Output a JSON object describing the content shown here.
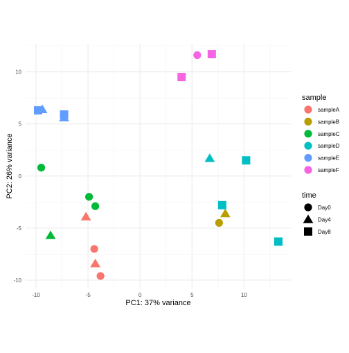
{
  "chart_data": {
    "type": "scatter",
    "xlabel": "PC1: 37% variance",
    "ylabel": "PC2: 26% variance",
    "xlim": [
      -11,
      14.5
    ],
    "ylim": [
      -10.8,
      12.7
    ],
    "x_ticks": [
      -10,
      -5,
      0,
      5,
      10
    ],
    "y_ticks": [
      -10,
      -5,
      0,
      5,
      10
    ],
    "x_tick_labels": [
      "-10",
      "-5",
      "0",
      "5",
      "10"
    ],
    "y_tick_labels": [
      "-10",
      "-5",
      "0",
      "5",
      "10"
    ],
    "grid": true,
    "legend_placement": "right",
    "legends": {
      "colour": {
        "title": "sample",
        "entries": [
          {
            "label": "sampleA",
            "color": "#F8766D"
          },
          {
            "label": "sampleB",
            "color": "#B79F00"
          },
          {
            "label": "sampleC",
            "color": "#00BA38"
          },
          {
            "label": "sampleD",
            "color": "#00BFC4"
          },
          {
            "label": "sampleE",
            "color": "#619CFF"
          },
          {
            "label": "sampleF",
            "color": "#F564E3"
          }
        ]
      },
      "shape": {
        "title": "time",
        "entries": [
          {
            "label": "Day0",
            "shape": "circle"
          },
          {
            "label": "Day4",
            "shape": "triangle"
          },
          {
            "label": "Day8",
            "shape": "square"
          }
        ]
      }
    },
    "points": [
      {
        "sample": "sampleA",
        "time": "Day0",
        "x": -4.4,
        "y": -7.0
      },
      {
        "sample": "sampleA",
        "time": "Day0",
        "x": -3.8,
        "y": -9.6
      },
      {
        "sample": "sampleA",
        "time": "Day4",
        "x": -5.2,
        "y": -3.9
      },
      {
        "sample": "sampleA",
        "time": "Day4",
        "x": -4.3,
        "y": -8.4
      },
      {
        "sample": "sampleB",
        "time": "Day0",
        "x": 7.6,
        "y": -4.5
      },
      {
        "sample": "sampleB",
        "time": "Day4",
        "x": 8.2,
        "y": -3.6
      },
      {
        "sample": "sampleC",
        "time": "Day0",
        "x": -9.5,
        "y": 0.8
      },
      {
        "sample": "sampleC",
        "time": "Day0",
        "x": -4.9,
        "y": -2.0
      },
      {
        "sample": "sampleC",
        "time": "Day0",
        "x": -4.3,
        "y": -2.9
      },
      {
        "sample": "sampleC",
        "time": "Day4",
        "x": -8.6,
        "y": -5.7
      },
      {
        "sample": "sampleD",
        "time": "Day4",
        "x": 6.7,
        "y": 1.7
      },
      {
        "sample": "sampleD",
        "time": "Day8",
        "x": 10.2,
        "y": 1.5
      },
      {
        "sample": "sampleD",
        "time": "Day8",
        "x": 7.9,
        "y": -2.8
      },
      {
        "sample": "sampleD",
        "time": "Day8",
        "x": 13.3,
        "y": -6.3
      },
      {
        "sample": "sampleE",
        "time": "Day4",
        "x": -9.4,
        "y": 6.4
      },
      {
        "sample": "sampleE",
        "time": "Day4",
        "x": -7.3,
        "y": 5.6
      },
      {
        "sample": "sampleE",
        "time": "Day8",
        "x": -9.8,
        "y": 6.3
      },
      {
        "sample": "sampleE",
        "time": "Day8",
        "x": -7.3,
        "y": 5.9
      },
      {
        "sample": "sampleF",
        "time": "Day0",
        "x": 5.5,
        "y": 11.6
      },
      {
        "sample": "sampleF",
        "time": "Day8",
        "x": 4.0,
        "y": 9.5
      },
      {
        "sample": "sampleF",
        "time": "Day8",
        "x": 6.9,
        "y": 11.7
      }
    ]
  }
}
